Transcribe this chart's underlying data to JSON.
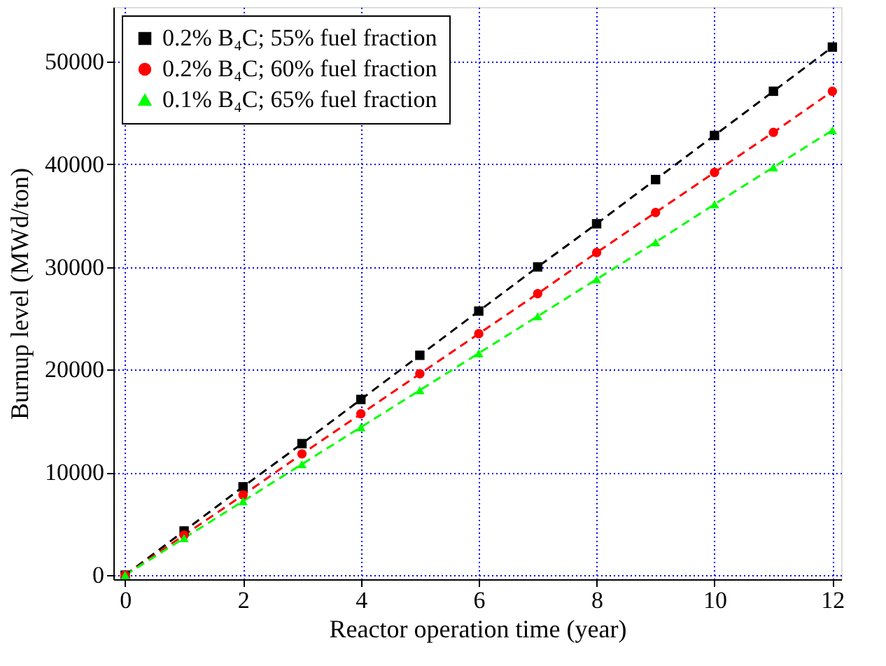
{
  "chart_data": {
    "type": "line",
    "xlabel": "Reactor operation time (year)",
    "ylabel": "Burnup level (MWd/ton)",
    "x": [
      0,
      1,
      2,
      3,
      4,
      5,
      6,
      7,
      8,
      9,
      10,
      11,
      12
    ],
    "series": [
      {
        "name": "0.2% B₄C; 55% fuel fraction",
        "color": "#000000",
        "marker": "square",
        "values": [
          0,
          4300,
          8600,
          12800,
          17100,
          21400,
          25700,
          30000,
          34200,
          38500,
          42800,
          47100,
          51400
        ]
      },
      {
        "name": "0.2% B₄C; 60% fuel fraction",
        "color": "#ff0000",
        "marker": "circle",
        "values": [
          0,
          3900,
          7800,
          11800,
          15700,
          19600,
          23500,
          27400,
          31400,
          35300,
          39200,
          43100,
          47100
        ]
      },
      {
        "name": "0.1% B₄C; 65% fuel fraction",
        "color": "#00ff00",
        "marker": "triangle",
        "values": [
          0,
          3600,
          7200,
          10800,
          14400,
          18000,
          21600,
          25200,
          28800,
          32400,
          36100,
          39700,
          43300
        ]
      }
    ],
    "xlim": [
      -0.2,
      12.15
    ],
    "xticks": [
      0,
      2,
      4,
      6,
      8,
      10,
      12
    ],
    "ylim": [
      -400,
      55300
    ],
    "yticks": [
      0,
      10000,
      20000,
      30000,
      40000,
      50000
    ],
    "grid": true,
    "legend": "top left",
    "line_style": "dashed"
  }
}
